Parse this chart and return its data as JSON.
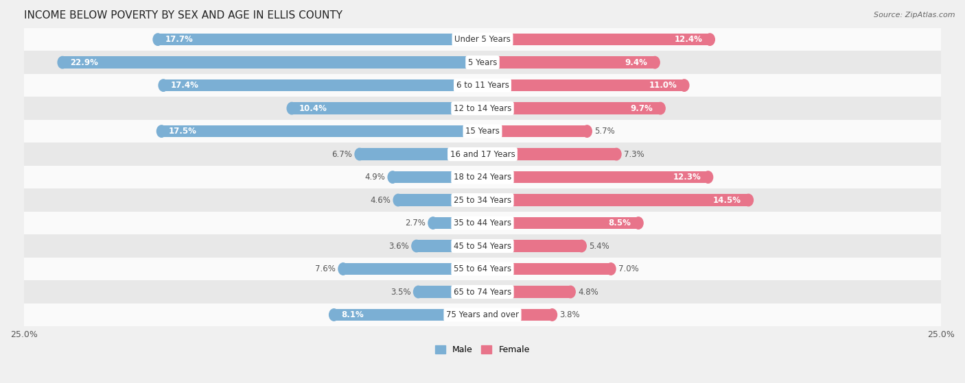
{
  "title": "INCOME BELOW POVERTY BY SEX AND AGE IN ELLIS COUNTY",
  "source": "Source: ZipAtlas.com",
  "categories": [
    "Under 5 Years",
    "5 Years",
    "6 to 11 Years",
    "12 to 14 Years",
    "15 Years",
    "16 and 17 Years",
    "18 to 24 Years",
    "25 to 34 Years",
    "35 to 44 Years",
    "45 to 54 Years",
    "55 to 64 Years",
    "65 to 74 Years",
    "75 Years and over"
  ],
  "male_values": [
    17.7,
    22.9,
    17.4,
    10.4,
    17.5,
    6.7,
    4.9,
    4.6,
    2.7,
    3.6,
    7.6,
    3.5,
    8.1
  ],
  "female_values": [
    12.4,
    9.4,
    11.0,
    9.7,
    5.7,
    7.3,
    12.3,
    14.5,
    8.5,
    5.4,
    7.0,
    4.8,
    3.8
  ],
  "male_color": "#7bafd4",
  "female_color": "#e8748a",
  "male_label": "Male",
  "female_label": "Female",
  "axis_limit": 25.0,
  "background_color": "#f0f0f0",
  "row_color_light": "#fafafa",
  "row_color_dark": "#e8e8e8",
  "title_fontsize": 11,
  "label_fontsize": 8.5,
  "tick_fontsize": 9,
  "bar_height": 0.52,
  "inside_label_threshold": 8.0
}
